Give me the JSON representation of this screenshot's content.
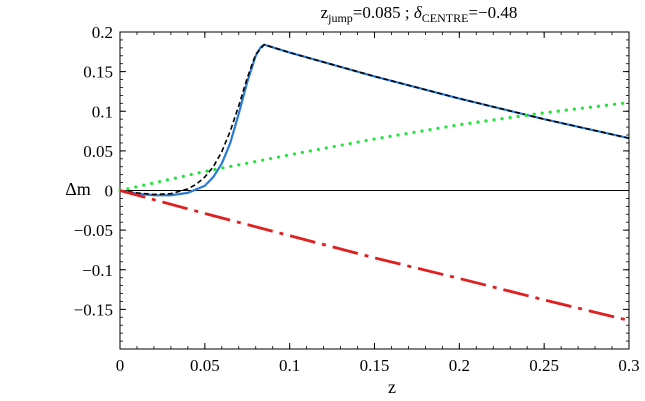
{
  "title": {
    "z_sym": "z",
    "z_sub": "jump",
    "z_val": "=0.085 ; ",
    "delta_sym": "δ",
    "delta_sub": "CENTRE",
    "delta_val": "=−0.48"
  },
  "chart_data": {
    "type": "line",
    "xlabel": "z",
    "ylabel": "Δm",
    "xlim": [
      0,
      0.3
    ],
    "ylim": [
      -0.2,
      0.2
    ],
    "xticks": [
      {
        "value": 0,
        "label": "0"
      },
      {
        "value": 0.05,
        "label": "0.05"
      },
      {
        "value": 0.1,
        "label": "0.1"
      },
      {
        "value": 0.15,
        "label": "0.15"
      },
      {
        "value": 0.2,
        "label": "0.2"
      },
      {
        "value": 0.25,
        "label": "0.25"
      },
      {
        "value": 0.3,
        "label": "0.3"
      }
    ],
    "yticks": [
      {
        "value": 0.2,
        "label": "0.2"
      },
      {
        "value": 0.15,
        "label": "0.15"
      },
      {
        "value": 0.1,
        "label": "0.1"
      },
      {
        "value": 0.05,
        "label": "0.05"
      },
      {
        "value": 0,
        "label": "0"
      },
      {
        "value": -0.05,
        "label": "−0.05"
      },
      {
        "value": -0.1,
        "label": "−0.1"
      },
      {
        "value": -0.15,
        "label": "−0.15"
      }
    ],
    "grid": false,
    "zero_line": true,
    "series": [
      {
        "style": "solid",
        "color": "#2b7bd6",
        "x": [
          0,
          0.01,
          0.02,
          0.03,
          0.04,
          0.05,
          0.055,
          0.06,
          0.065,
          0.07,
          0.075,
          0.08,
          0.083,
          0.085,
          0.1,
          0.15,
          0.2,
          0.25,
          0.3
        ],
        "y": [
          0,
          -0.004,
          -0.006,
          -0.006,
          -0.003,
          0.006,
          0.017,
          0.034,
          0.06,
          0.097,
          0.137,
          0.17,
          0.181,
          0.184,
          0.174,
          0.144,
          0.116,
          0.09,
          0.066
        ]
      },
      {
        "style": "dashed",
        "color": "#000000",
        "x": [
          0,
          0.01,
          0.02,
          0.03,
          0.04,
          0.045,
          0.05,
          0.055,
          0.06,
          0.065,
          0.07,
          0.075,
          0.08,
          0.085,
          0.1,
          0.15,
          0.2,
          0.25,
          0.3
        ],
        "y": [
          0,
          -0.003,
          -0.005,
          -0.004,
          0.002,
          0.008,
          0.017,
          0.03,
          0.049,
          0.075,
          0.107,
          0.142,
          0.172,
          0.184,
          0.174,
          0.144,
          0.116,
          0.09,
          0.066
        ]
      },
      {
        "style": "dotted",
        "color": "#22e53b",
        "x": [
          0,
          0.05,
          0.1,
          0.15,
          0.2,
          0.25,
          0.3
        ],
        "y": [
          0,
          0.024,
          0.045,
          0.065,
          0.083,
          0.098,
          0.111
        ]
      },
      {
        "style": "long-dash",
        "color": "#e02020",
        "x": [
          0,
          0.05,
          0.1,
          0.15,
          0.2,
          0.25,
          0.3
        ],
        "y": [
          0,
          -0.029,
          -0.057,
          -0.085,
          -0.111,
          -0.138,
          -0.164
        ]
      }
    ]
  }
}
